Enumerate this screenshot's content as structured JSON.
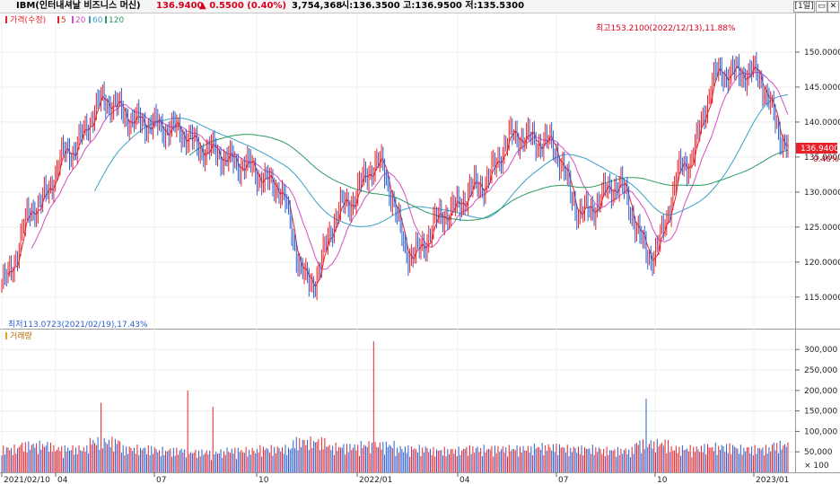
{
  "header": {
    "symbol": "IBM(인터내셔날 비즈니스 머신)",
    "price": "136.9400",
    "change_arrow": "▲",
    "change": "0.5500",
    "change_pct": "(0.40%)",
    "volume": "3,754,368",
    "open_high_low": "시:136.3500  고:136.9500  저:135.5300",
    "period_button": "[1일]",
    "restore_button": "▭",
    "close_button": "✕"
  },
  "price_panel": {
    "legend_price": "가격(수정)",
    "legend_ma": [
      "5",
      "20",
      "60",
      "120"
    ],
    "high_annotation": "최고153.2100(2022/12/13),11.88%",
    "low_annotation": "최저113.0723(2021/02/19),17.43%",
    "current_price_tag": "136.9400",
    "current_pct_tag": "0.40%",
    "y_ticks": [
      "150.0000",
      "145.0000",
      "140.0000",
      "135.0000",
      "130.0000",
      "125.0000",
      "120.0000",
      "115.0000"
    ]
  },
  "volume_panel": {
    "legend": "거래량",
    "y_ticks": [
      "300,000",
      "250,000",
      "200,000",
      "150,000",
      "100,000",
      "50,000"
    ],
    "unit": "× 100"
  },
  "x_axis": [
    "2021/02/10",
    "04",
    "07",
    "10",
    "2022/01",
    "04",
    "07",
    "10",
    "2023/01"
  ],
  "colors": {
    "up": "#e8202a",
    "down": "#2a5fd0",
    "ma5": "#e8202a",
    "ma20": "#d050c0",
    "ma60": "#3aa0c8",
    "ma120": "#2a9a60"
  },
  "chart_data": {
    "type": "line",
    "title": "IBM(인터내셔날 비즈니스 머신)",
    "x": [
      "2021-02",
      "2021-03",
      "2021-04",
      "2021-05",
      "2021-06",
      "2021-07",
      "2021-08",
      "2021-09",
      "2021-10",
      "2021-11",
      "2021-12",
      "2022-01",
      "2022-02",
      "2022-03",
      "2022-04",
      "2022-05",
      "2022-06",
      "2022-07",
      "2022-08",
      "2022-09",
      "2022-10",
      "2022-11",
      "2022-12",
      "2023-01"
    ],
    "series": [
      {
        "name": "가격(수정)",
        "values": [
          117,
          128,
          136,
          143,
          140,
          139,
          136,
          134,
          131,
          117,
          128,
          134,
          121,
          127,
          131,
          138,
          137,
          127,
          131,
          121,
          134,
          147,
          147,
          136.94
        ]
      }
    ],
    "volume_values": [
      60000,
      70000,
      60000,
      80000,
      60000,
      55000,
      50000,
      55000,
      60000,
      80000,
      65000,
      70000,
      60000,
      55000,
      60000,
      60000,
      65000,
      60000,
      55000,
      75000,
      60000,
      65000,
      60000,
      70000
    ],
    "ylim": [
      111,
      155
    ],
    "volume_ylim": [
      0,
      340000
    ],
    "grid": true
  }
}
